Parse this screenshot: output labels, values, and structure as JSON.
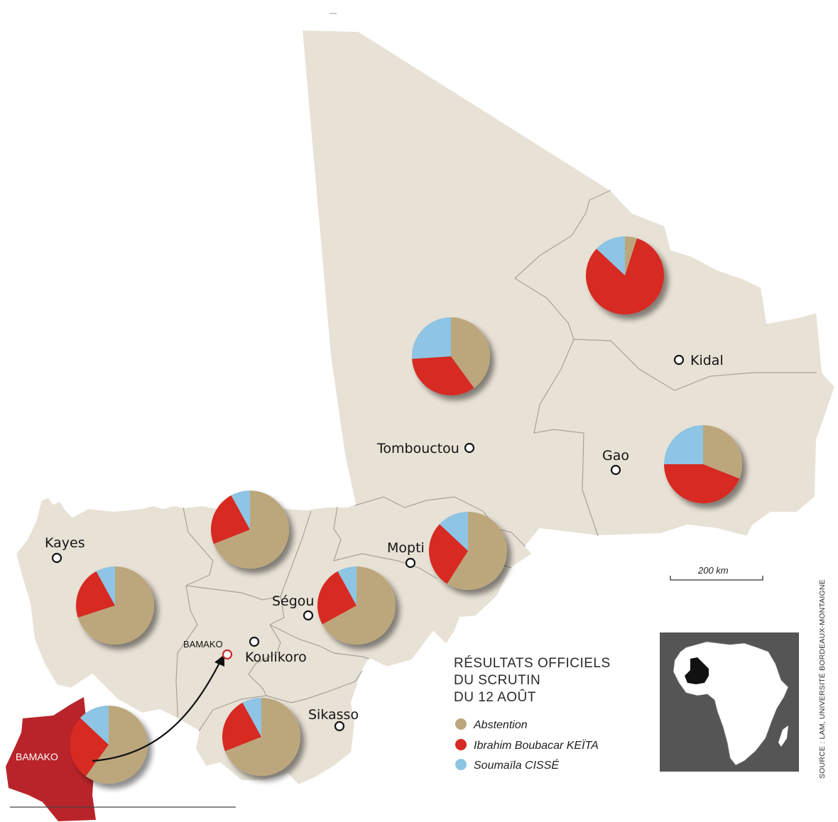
{
  "colors": {
    "abstention": "#bca77c",
    "keita": "#d62a22",
    "cisse": "#8ec4e4",
    "map_fill": "#e8e1d5",
    "bamako_fill": "#b8242a",
    "inset_bg": "#555555"
  },
  "legend": {
    "title_lines": [
      "RÉSULTATS OFFICIELS",
      "DU SCRUTIN",
      "DU 12 AOÛT"
    ],
    "items": [
      {
        "key": "abstention",
        "label": "Abstention"
      },
      {
        "key": "keita",
        "label": "Ibrahim Boubacar KEÏTA"
      },
      {
        "key": "cisse",
        "label": "Soumaïla CISSÉ"
      }
    ]
  },
  "cities": {
    "kidal": "Kidal",
    "tombouctou": "Tombouctou",
    "gao": "Gao",
    "kayes": "Kayes",
    "mopti": "Mopti",
    "segou": "Ségou",
    "bamako_small": "BAMAKO",
    "koulikoro": "Koulikoro",
    "sikasso": "Sikasso",
    "bamako_big": "BAMAKO"
  },
  "scale": "200 km",
  "source": "SOURCE : LAM, UNIVERSITÉ BORDEAUX-MONTAIGNE",
  "chart_data": {
    "type": "pie",
    "series_names": [
      "Abstention",
      "Ibrahim Boubacar KEÏTA",
      "Soumaïla CISSÉ"
    ],
    "pies": [
      {
        "region": "Kidal",
        "values": [
          5,
          82,
          13
        ]
      },
      {
        "region": "Tombouctou",
        "values": [
          40,
          34,
          26
        ]
      },
      {
        "region": "Gao",
        "values": [
          31,
          44,
          25
        ]
      },
      {
        "region": "Kayes",
        "values": [
          70,
          22,
          8
        ]
      },
      {
        "region": "Koulikoro",
        "values": [
          69,
          23,
          8
        ]
      },
      {
        "region": "Ségou",
        "values": [
          67,
          25,
          8
        ]
      },
      {
        "region": "Mopti",
        "values": [
          59,
          28,
          13
        ]
      },
      {
        "region": "Sikasso",
        "values": [
          69,
          23,
          8
        ]
      },
      {
        "region": "Bamako",
        "values": [
          60,
          27,
          13
        ]
      }
    ]
  }
}
